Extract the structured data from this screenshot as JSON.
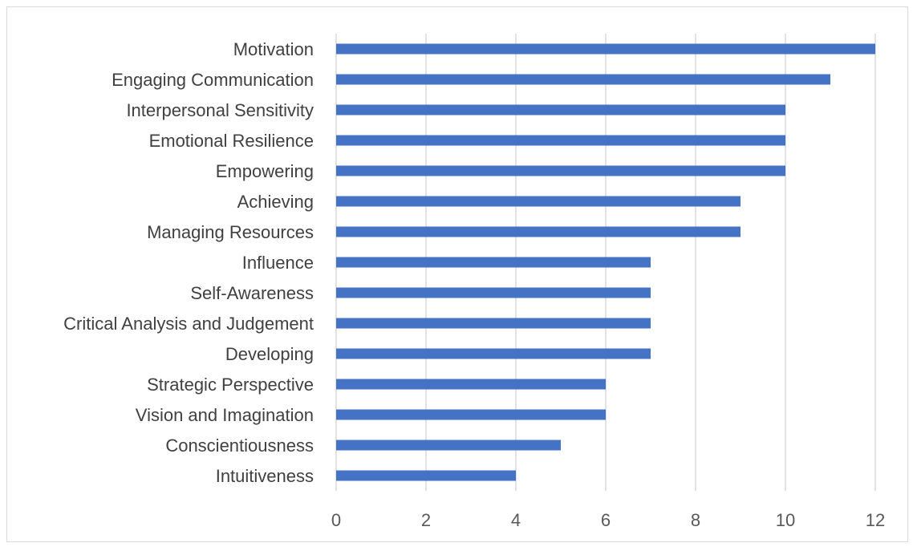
{
  "chart_data": {
    "type": "bar",
    "orientation": "horizontal",
    "categories": [
      "Motivation",
      "Engaging Communication",
      "Interpersonal Sensitivity",
      "Emotional Resilience",
      "Empowering",
      "Achieving",
      "Managing Resources",
      "Influence",
      "Self-Awareness",
      "Critical Analysis and Judgement",
      "Developing",
      "Strategic Perspective",
      "Vision and Imagination",
      "Conscientiousness",
      "Intuitiveness"
    ],
    "values": [
      12,
      11,
      10,
      10,
      10,
      9,
      9,
      7,
      7,
      7,
      7,
      6,
      6,
      5,
      4
    ],
    "xlim": [
      0,
      12
    ],
    "xticks": [
      0,
      2,
      4,
      6,
      8,
      10,
      12
    ],
    "xtick_labels": [
      "0",
      "2",
      "4",
      "6",
      "8",
      "10",
      "12"
    ],
    "grid": true,
    "legend": "none",
    "bar_color": "#4472c4",
    "title": "",
    "xlabel": "",
    "ylabel": ""
  }
}
